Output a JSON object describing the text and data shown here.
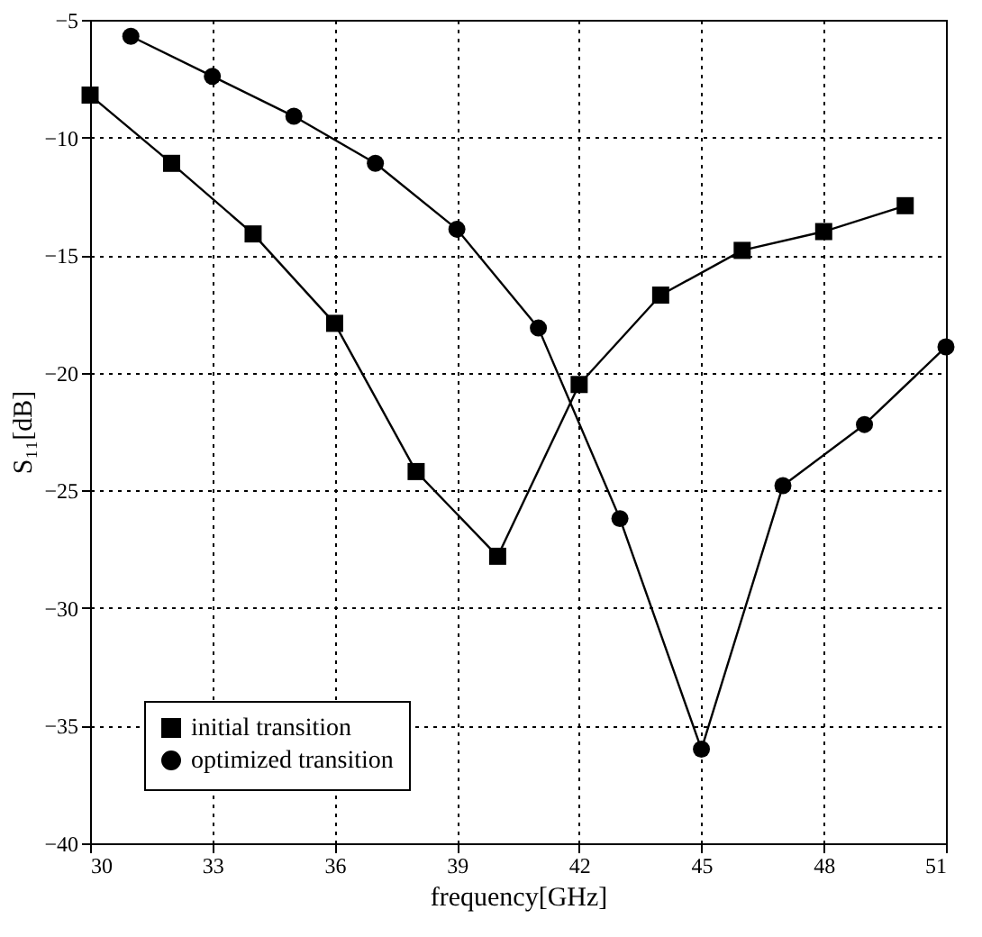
{
  "chart_data": {
    "type": "line",
    "xlabel": "frequency[GHz]",
    "ylabel": "S₁₁[dB]",
    "xlim": [
      30,
      51
    ],
    "xticks": [
      30,
      33,
      36,
      39,
      42,
      45,
      48,
      51
    ],
    "ylim": [
      -40,
      -5
    ],
    "yticks": [
      -40,
      -35,
      -30,
      -25,
      -20,
      -15,
      -10,
      -5
    ],
    "grid": true,
    "legend": "bottom left",
    "line_style": "solid",
    "series": [
      {
        "name": "initial transition",
        "color": "#000000",
        "marker": "square",
        "x": [
          30,
          32,
          34,
          36,
          38,
          40,
          42,
          44,
          46,
          48,
          50
        ],
        "values": [
          -8.2,
          -11.1,
          -14.1,
          -17.9,
          -24.2,
          -27.8,
          -20.5,
          -16.7,
          -14.8,
          -14.0,
          -12.9
        ]
      },
      {
        "name": "optimized transition",
        "color": "#000000",
        "marker": "circle",
        "x": [
          31,
          33,
          35,
          37,
          39,
          41,
          43,
          45,
          47,
          49,
          51
        ],
        "values": [
          -5.7,
          -7.4,
          -9.1,
          -11.1,
          -13.9,
          -18.1,
          -26.2,
          -36.0,
          -24.8,
          -22.2,
          -18.9
        ]
      }
    ]
  }
}
